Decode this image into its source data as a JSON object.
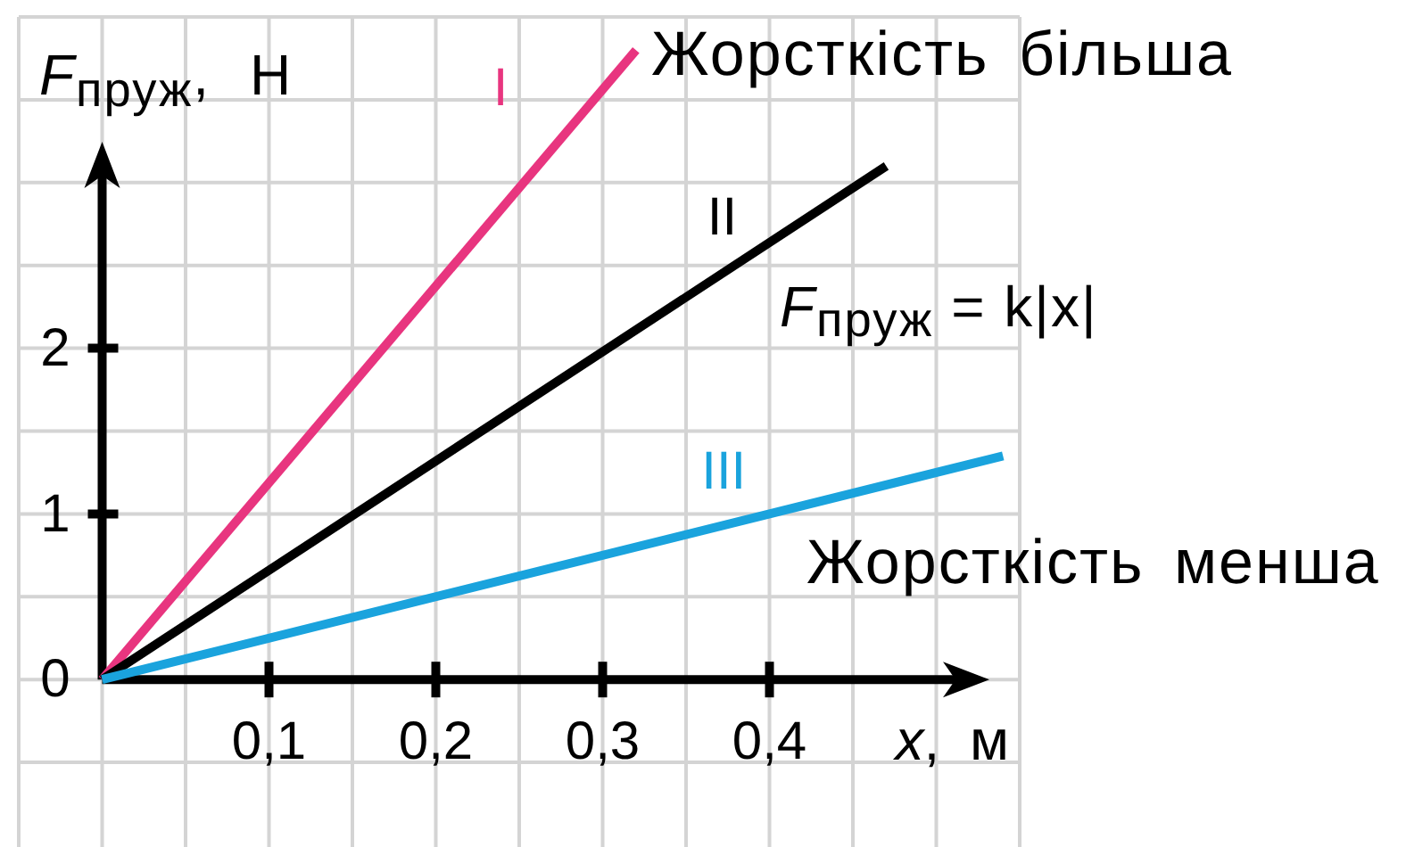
{
  "chart_data": {
    "type": "line",
    "xlabel": "x, м",
    "ylabel": "F$_{пруж}$, Н",
    "xlim": [
      -0.05,
      0.55
    ],
    "ylim": [
      -1,
      4
    ],
    "xticks": [
      {
        "value": -0.05,
        "label": null
      },
      {
        "value": 0,
        "label": null
      },
      {
        "value": 0.05,
        "label": null
      },
      {
        "value": 0.1,
        "label": "0,1"
      },
      {
        "value": 0.15,
        "label": null
      },
      {
        "value": 0.2,
        "label": "0,2"
      },
      {
        "value": 0.25,
        "label": null
      },
      {
        "value": 0.3,
        "label": "0,3"
      },
      {
        "value": 0.35,
        "label": null
      },
      {
        "value": 0.4,
        "label": "0,4"
      },
      {
        "value": 0.45,
        "label": null
      },
      {
        "value": 0.5,
        "label": null
      },
      {
        "value": 0.55,
        "label": null
      }
    ],
    "yticks": [
      {
        "value": -0.5,
        "label": null
      },
      0,
      {
        "value": 0.5,
        "label": null
      },
      1,
      {
        "value": 1.5,
        "label": null
      },
      2,
      {
        "value": 2.5,
        "label": null
      },
      {
        "value": 3,
        "label": null
      },
      {
        "value": 3.5,
        "label": null
      },
      {
        "value": 4,
        "label": null
      }
    ],
    "grid": true,
    "series": [
      {
        "name": "I",
        "color": "#e8357f",
        "x": [
          0,
          0.32
        ],
        "values": [
          0,
          3.8
        ]
      },
      {
        "name": "II",
        "color": "#000000",
        "x": [
          0,
          0.47
        ],
        "values": [
          0,
          3.1
        ]
      },
      {
        "name": "III",
        "color": "#1aa3dd",
        "x": [
          0,
          0.54
        ],
        "values": [
          0,
          1.35
        ]
      }
    ],
    "annotations": [
      "Жорсткість більша",
      "F$_{пруж}$ = k|x|",
      "Жорсткість менша"
    ]
  }
}
